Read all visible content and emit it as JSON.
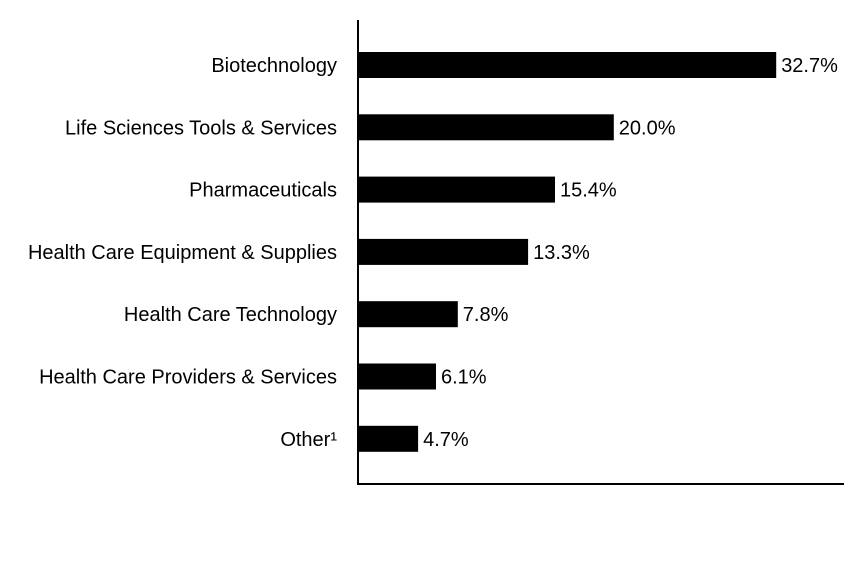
{
  "chart_data": {
    "type": "bar",
    "orientation": "horizontal",
    "categories": [
      "Biotechnology",
      "Life Sciences Tools & Services",
      "Pharmaceuticals",
      "Health Care Equipment & Supplies",
      "Health Care Technology",
      "Health Care Providers & Services",
      "Other¹"
    ],
    "values": [
      32.7,
      20.0,
      15.4,
      13.3,
      7.8,
      6.1,
      4.7
    ],
    "value_labels": [
      "32.7%",
      "20.0%",
      "15.4%",
      "13.3%",
      "7.8%",
      "6.1%",
      "4.7%"
    ],
    "xlim": [
      0,
      38
    ],
    "grid": false,
    "bar_color": "#000000"
  }
}
